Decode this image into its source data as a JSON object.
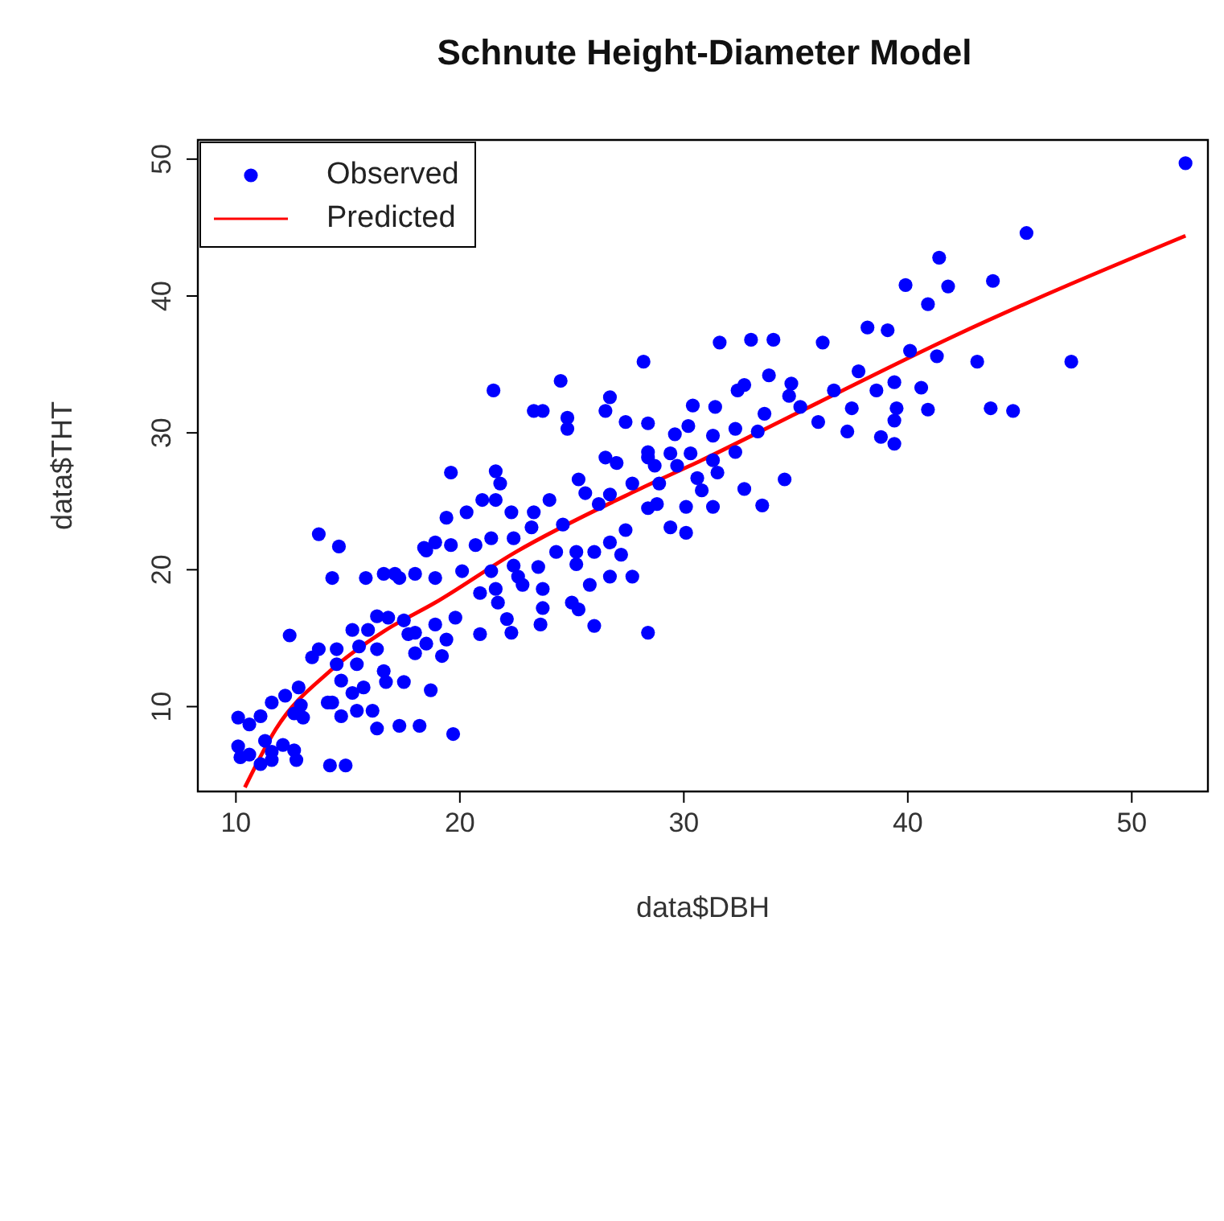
{
  "chart_data": {
    "type": "scatter",
    "title": "Schnute Height-Diameter Model",
    "xlabel": "data$DBH",
    "ylabel": "data$THT",
    "xlim": [
      8.3,
      53.4
    ],
    "ylim": [
      3.8,
      51.4
    ],
    "xticks": [
      10,
      20,
      30,
      40,
      50
    ],
    "yticks": [
      10,
      20,
      30,
      40,
      50
    ],
    "grid": false,
    "legend": "top left",
    "marker": "circle",
    "series": [
      {
        "name": "Observed",
        "color": "#0000ff",
        "x": [
          52.4,
          45.3,
          41.4,
          43.8,
          39.9,
          41.8,
          40.9,
          38.2,
          39.1,
          31.6,
          33.0,
          34.0,
          36.2,
          40.1,
          41.3,
          43.1,
          47.3,
          28.2,
          37.8,
          39.4,
          33.8,
          34.8,
          32.7,
          32.4,
          36.7,
          38.6,
          40.6,
          34.7,
          30.4,
          31.4,
          35.2,
          37.5,
          39.5,
          40.9,
          43.7,
          44.7,
          33.6,
          36.0,
          39.4,
          37.3,
          28.4,
          32.3,
          33.3,
          31.3,
          29.6,
          30.2,
          38.8,
          39.4,
          32.3,
          28.4,
          29.4,
          30.3,
          31.3,
          28.7,
          29.7,
          31.5,
          34.5,
          30.6,
          28.9,
          32.7,
          30.8,
          33.5,
          31.3,
          30.1,
          28.8,
          24.5,
          21.5,
          23.3,
          23.7,
          26.7,
          26.5,
          24.8,
          24.8,
          27.4,
          26.5,
          27.0,
          28.4,
          25.3,
          19.6,
          21.6,
          21.8,
          25.6,
          26.7,
          27.7,
          21.0,
          21.6,
          24.0,
          26.2,
          28.4,
          19.4,
          20.3,
          22.3,
          23.3,
          23.2,
          24.6,
          27.4,
          29.4,
          30.1,
          21.4,
          22.4,
          18.9,
          18.5,
          19.6,
          20.7,
          24.3,
          25.2,
          26.0,
          26.7,
          27.2,
          25.2,
          22.4,
          23.5,
          22.6,
          21.4,
          20.1,
          18.9,
          17.1,
          18.0,
          26.7,
          27.7,
          25.8,
          22.8,
          23.7,
          20.9,
          21.6,
          21.7,
          23.7,
          25.0,
          25.3,
          22.1,
          19.8,
          18.9,
          17.5,
          16.8,
          23.6,
          26.0,
          28.4,
          20.9,
          22.3,
          19.4,
          18.0,
          18.5,
          19.2,
          18.0,
          13.7,
          14.6,
          18.4,
          14.3,
          15.8,
          16.6,
          17.3,
          12.4,
          16.3,
          15.2,
          15.9,
          17.7,
          13.7,
          14.5,
          15.5,
          16.3,
          13.4,
          14.5,
          15.4,
          16.6,
          12.8,
          12.2,
          11.6,
          12.9,
          14.1,
          14.7,
          15.2,
          15.7,
          16.7,
          17.5,
          18.7,
          14.3,
          14.7,
          15.4,
          16.1,
          13.0,
          12.6,
          11.1,
          10.6,
          16.3,
          17.3,
          18.2,
          19.7,
          10.1,
          10.2,
          10.6,
          11.3,
          12.1,
          12.6,
          12.7,
          11.6,
          11.1,
          14.2,
          14.9,
          11.6,
          10.1
        ],
        "values": [
          49.7,
          44.6,
          42.8,
          41.1,
          40.8,
          40.7,
          39.4,
          37.7,
          37.5,
          36.6,
          36.8,
          36.8,
          36.6,
          36.0,
          35.6,
          35.2,
          35.2,
          35.2,
          34.5,
          33.7,
          34.2,
          33.6,
          33.5,
          33.1,
          33.1,
          33.1,
          33.3,
          32.7,
          32.0,
          31.9,
          31.9,
          31.8,
          31.8,
          31.7,
          31.8,
          31.6,
          31.4,
          30.8,
          30.9,
          30.1,
          30.7,
          30.3,
          30.1,
          29.8,
          29.9,
          30.5,
          29.7,
          29.2,
          28.6,
          28.6,
          28.5,
          28.5,
          28.0,
          27.6,
          27.6,
          27.1,
          26.6,
          26.7,
          26.3,
          25.9,
          25.8,
          24.7,
          24.6,
          24.6,
          24.8,
          33.8,
          33.1,
          31.6,
          31.6,
          32.6,
          31.6,
          31.1,
          30.3,
          30.8,
          28.2,
          27.8,
          28.2,
          26.6,
          27.1,
          27.2,
          26.3,
          25.6,
          25.5,
          26.3,
          25.1,
          25.1,
          25.1,
          24.8,
          24.5,
          23.8,
          24.2,
          24.2,
          24.2,
          23.1,
          23.3,
          22.9,
          23.1,
          22.7,
          22.3,
          22.3,
          22.0,
          21.4,
          21.8,
          21.8,
          21.3,
          21.3,
          21.3,
          22.0,
          21.1,
          20.4,
          20.3,
          20.2,
          19.5,
          19.9,
          19.9,
          19.4,
          19.7,
          19.7,
          19.5,
          19.5,
          18.9,
          18.9,
          18.6,
          18.3,
          18.6,
          17.6,
          17.2,
          17.6,
          17.1,
          16.4,
          16.5,
          16.0,
          16.3,
          16.5,
          16.0,
          15.9,
          15.4,
          15.3,
          15.4,
          14.9,
          15.4,
          14.6,
          13.7,
          13.9,
          22.6,
          21.7,
          21.6,
          19.4,
          19.4,
          19.7,
          19.4,
          15.2,
          16.6,
          15.6,
          15.6,
          15.3,
          14.2,
          14.2,
          14.4,
          14.2,
          13.6,
          13.1,
          13.1,
          12.6,
          11.4,
          10.8,
          10.3,
          10.1,
          10.3,
          11.9,
          11.0,
          11.4,
          11.8,
          11.8,
          11.2,
          10.3,
          9.3,
          9.7,
          9.7,
          9.2,
          9.5,
          9.3,
          8.7,
          8.4,
          8.6,
          8.6,
          8.0,
          7.1,
          6.3,
          6.5,
          7.5,
          7.2,
          6.8,
          6.1,
          6.1,
          5.8,
          5.7,
          5.7,
          6.7,
          9.2
        ]
      },
      {
        "name": "Predicted",
        "type": "line",
        "color": "#ff0000",
        "marker": "none",
        "line_style": "solid",
        "x": [
          10.4,
          11.8,
          14.2,
          16.6,
          18.9,
          22.5,
          27.9,
          30.8,
          35.0,
          42.1,
          52.4
        ],
        "values": [
          4.1,
          8.4,
          12.6,
          15.5,
          17.6,
          21.3,
          25.8,
          28.0,
          31.4,
          37.1,
          44.4
        ]
      }
    ]
  }
}
